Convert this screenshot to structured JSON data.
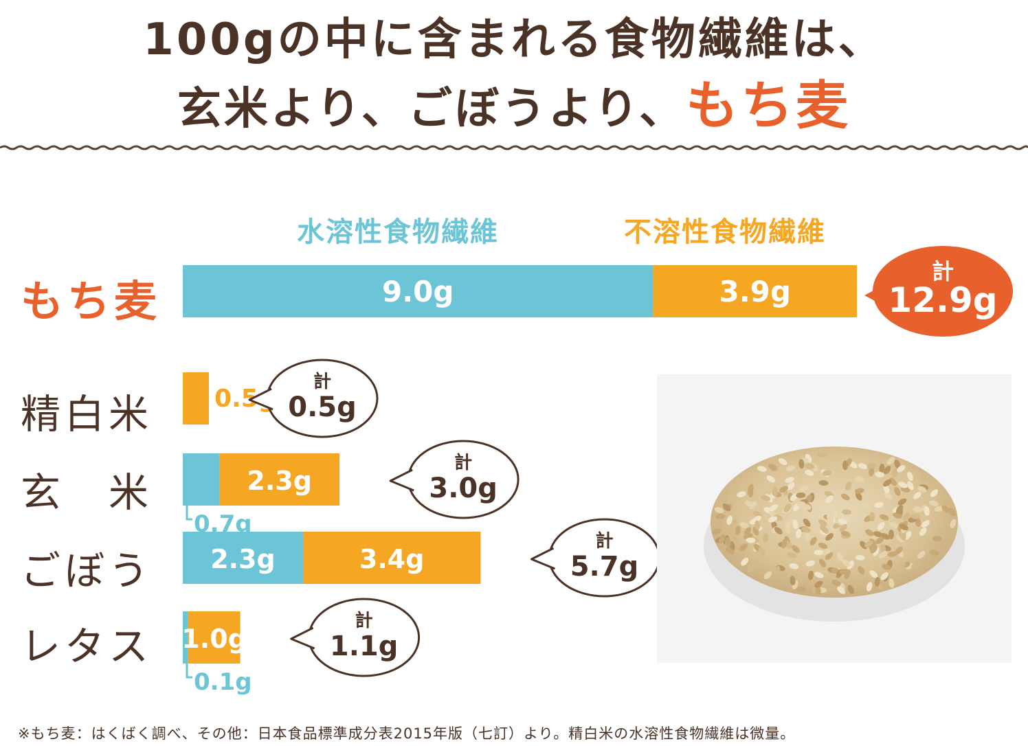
{
  "headline": {
    "line1": "100gの中に含まれる食物繊維は、",
    "line2_prefix": "玄米より、ごぼうより、",
    "line2_accent": "もち麦"
  },
  "colors": {
    "soluble": "#6cc5d6",
    "insoluble": "#f5a623",
    "accent": "#e8602c",
    "text": "#4a3326",
    "bubble_outline": "#4a3326",
    "label_white": "#ffffff"
  },
  "total_prefix": "計",
  "footnote": "※もち麦：はくばく調べ、その他：日本食品標準成分表2015年版（七訂）より。精白米の水溶性食物繊維は微量。",
  "photo": {
    "icon": "barley-grain-pile-photo"
  },
  "chart_data": {
    "type": "bar",
    "orientation": "horizontal",
    "stacked": true,
    "unit": "g",
    "legend": [
      "水溶性食物繊維",
      "不溶性食物繊維"
    ],
    "categories": [
      "もち麦",
      "精白米",
      "玄　米",
      "ごぼう",
      "レタス"
    ],
    "series": [
      {
        "name": "水溶性食物繊維",
        "values": [
          9.0,
          0,
          0.7,
          2.3,
          0.1
        ],
        "labels": [
          "9.0g",
          "",
          "0.7g",
          "2.3g",
          "0.1g"
        ]
      },
      {
        "name": "不溶性食物繊維",
        "values": [
          3.9,
          0.5,
          2.3,
          3.4,
          1.0
        ],
        "labels": [
          "3.9g",
          "0.5g",
          "2.3g",
          "3.4g",
          "1.0g"
        ]
      }
    ],
    "totals": [
      "12.9g",
      "0.5g",
      "3.0g",
      "5.7g",
      "1.1g"
    ],
    "xlim": [
      0,
      12.9
    ]
  }
}
